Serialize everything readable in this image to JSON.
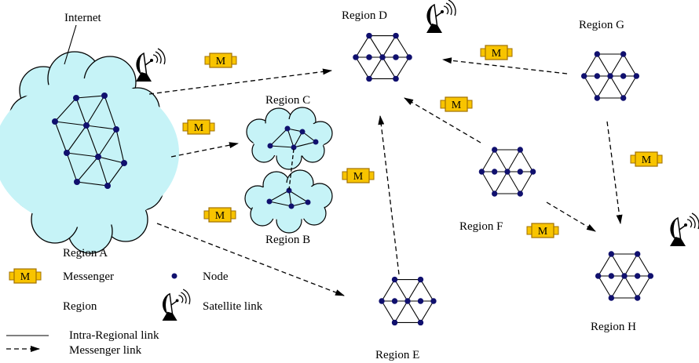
{
  "labels": {
    "internet": "Internet",
    "region_a": "Region A",
    "region_b": "Region B",
    "region_c": "Region C",
    "region_d": "Region D",
    "region_e": "Region E",
    "region_f": "Region F",
    "region_g": "Region G",
    "region_h": "Region H"
  },
  "messenger_letter": "M",
  "legend": {
    "messenger": "Messenger",
    "node": "Node",
    "region": "Region",
    "satellite_link": "Satellite link",
    "intra_regional_link": "Intra-Regional link",
    "messenger_link": "Messenger link"
  },
  "colors": {
    "cloud_fill": "#c6f3f7",
    "node": "#10106e",
    "messenger_fill": "#f8c400",
    "messenger_stroke": "#a07000"
  },
  "icons": {
    "satellite": "satellite-dish-icon",
    "messenger": "messenger-icon",
    "node": "node-dot-icon"
  }
}
